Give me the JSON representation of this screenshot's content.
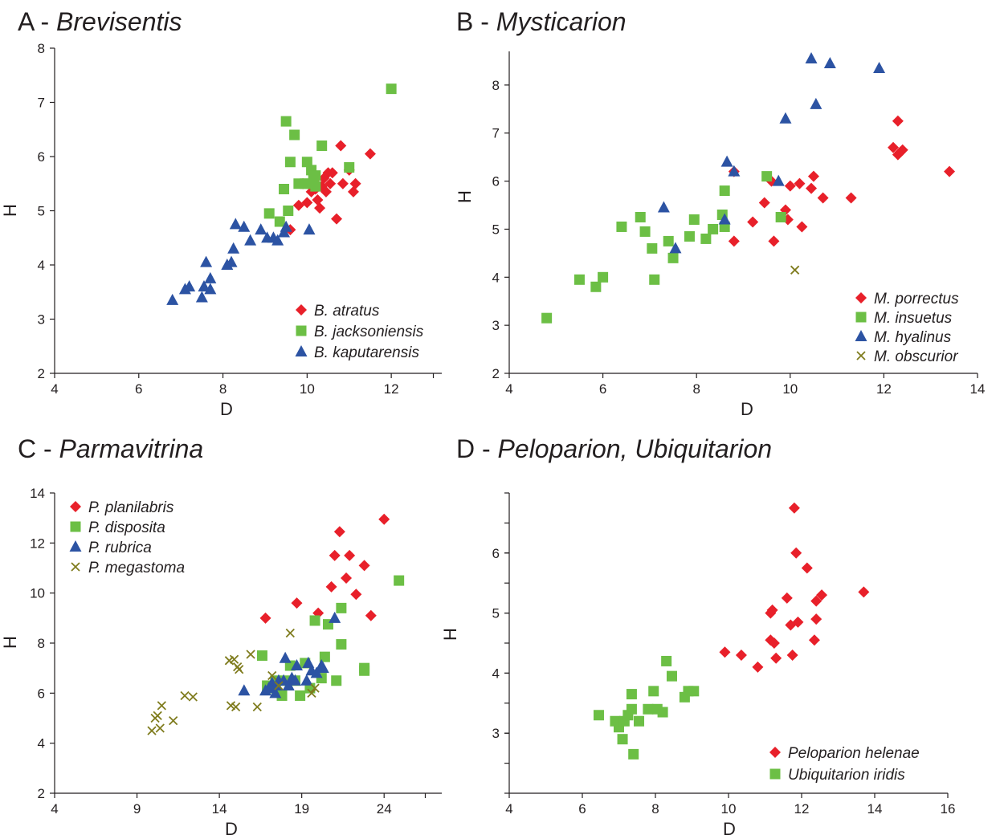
{
  "colors": {
    "red": "#e8202a",
    "green": "#6cbf45",
    "blue": "#2c53a3",
    "olive": "#7f7c1e"
  },
  "chart_data": [
    {
      "type": "scatter",
      "panel_letter": "A - ",
      "title": "Brevisentis",
      "xlabel": "D",
      "ylabel": "H",
      "xlim": [
        4,
        13.2
      ],
      "ylim": [
        2,
        8
      ],
      "xticks": [
        4,
        6,
        8,
        10,
        12
      ],
      "yticks": [
        2,
        3,
        4,
        5,
        6,
        7,
        8
      ],
      "legend_position": "bottom-right",
      "series": [
        {
          "name": "B. atratus",
          "marker": "diamond",
          "color": "#e8202a",
          "points": [
            [
              9.6,
              4.65
            ],
            [
              9.8,
              5.1
            ],
            [
              9.9,
              5.5
            ],
            [
              10.0,
              5.15
            ],
            [
              10.1,
              5.35
            ],
            [
              10.15,
              5.55
            ],
            [
              10.2,
              5.4
            ],
            [
              10.25,
              5.2
            ],
            [
              10.3,
              5.05
            ],
            [
              10.35,
              5.45
            ],
            [
              10.4,
              5.6
            ],
            [
              10.45,
              5.35
            ],
            [
              10.5,
              5.7
            ],
            [
              10.55,
              5.5
            ],
            [
              10.6,
              5.7
            ],
            [
              10.7,
              4.85
            ],
            [
              10.8,
              6.2
            ],
            [
              10.85,
              5.5
            ],
            [
              11.0,
              5.75
            ],
            [
              11.1,
              5.35
            ],
            [
              11.15,
              5.5
            ],
            [
              11.5,
              6.05
            ]
          ]
        },
        {
          "name": "B. jacksoniensis",
          "marker": "square",
          "color": "#6cbf45",
          "points": [
            [
              9.1,
              4.95
            ],
            [
              9.35,
              4.8
            ],
            [
              9.45,
              5.4
            ],
            [
              9.5,
              6.65
            ],
            [
              9.55,
              5.0
            ],
            [
              9.6,
              5.9
            ],
            [
              9.7,
              6.4
            ],
            [
              9.8,
              5.5
            ],
            [
              9.95,
              5.5
            ],
            [
              10.0,
              5.9
            ],
            [
              10.05,
              5.5
            ],
            [
              10.1,
              5.75
            ],
            [
              10.15,
              5.6
            ],
            [
              10.2,
              5.65
            ],
            [
              10.2,
              5.45
            ],
            [
              10.35,
              6.2
            ],
            [
              11.0,
              5.8
            ],
            [
              12.0,
              7.25
            ]
          ]
        },
        {
          "name": "B. kaputarensis",
          "marker": "triangle",
          "color": "#2c53a3",
          "points": [
            [
              6.8,
              3.35
            ],
            [
              7.1,
              3.55
            ],
            [
              7.2,
              3.6
            ],
            [
              7.5,
              3.4
            ],
            [
              7.55,
              3.6
            ],
            [
              7.6,
              4.05
            ],
            [
              7.7,
              3.75
            ],
            [
              7.7,
              3.55
            ],
            [
              8.1,
              4.0
            ],
            [
              8.2,
              4.05
            ],
            [
              8.25,
              4.3
            ],
            [
              8.3,
              4.75
            ],
            [
              8.5,
              4.7
            ],
            [
              8.65,
              4.45
            ],
            [
              8.9,
              4.65
            ],
            [
              9.05,
              4.5
            ],
            [
              9.2,
              4.5
            ],
            [
              9.3,
              4.45
            ],
            [
              9.45,
              4.6
            ],
            [
              9.5,
              4.7
            ],
            [
              10.05,
              4.65
            ]
          ]
        }
      ]
    },
    {
      "type": "scatter",
      "panel_letter": "B - ",
      "title": "Mysticarion",
      "xlabel": "D",
      "ylabel": "H",
      "xlim": [
        4,
        14
      ],
      "ylim": [
        2,
        8.7
      ],
      "xticks": [
        4,
        6,
        8,
        10,
        12,
        14
      ],
      "yticks": [
        2,
        3,
        4,
        5,
        6,
        7,
        8
      ],
      "legend_position": "bottom-right",
      "series": [
        {
          "name": "M. porrectus",
          "marker": "diamond",
          "color": "#e8202a",
          "points": [
            [
              8.8,
              4.75
            ],
            [
              8.8,
              6.2
            ],
            [
              9.2,
              5.15
            ],
            [
              9.45,
              5.55
            ],
            [
              9.6,
              6.0
            ],
            [
              9.65,
              4.75
            ],
            [
              9.9,
              5.4
            ],
            [
              9.95,
              5.2
            ],
            [
              10.0,
              5.9
            ],
            [
              10.2,
              5.95
            ],
            [
              10.25,
              5.05
            ],
            [
              10.45,
              5.85
            ],
            [
              10.5,
              6.1
            ],
            [
              10.7,
              5.65
            ],
            [
              11.3,
              5.65
            ],
            [
              12.2,
              6.7
            ],
            [
              12.3,
              6.55
            ],
            [
              12.35,
              6.6
            ],
            [
              12.4,
              6.65
            ],
            [
              12.3,
              7.25
            ],
            [
              13.4,
              6.2
            ]
          ]
        },
        {
          "name": "M. insuetus",
          "marker": "square",
          "color": "#6cbf45",
          "points": [
            [
              4.8,
              3.15
            ],
            [
              5.5,
              3.95
            ],
            [
              5.85,
              3.8
            ],
            [
              6.0,
              4.0
            ],
            [
              6.4,
              5.05
            ],
            [
              6.8,
              5.25
            ],
            [
              6.9,
              4.95
            ],
            [
              7.05,
              4.6
            ],
            [
              7.1,
              3.95
            ],
            [
              7.4,
              4.75
            ],
            [
              7.5,
              4.4
            ],
            [
              7.85,
              4.85
            ],
            [
              7.95,
              5.2
            ],
            [
              8.2,
              4.8
            ],
            [
              8.35,
              5.0
            ],
            [
              8.55,
              5.3
            ],
            [
              8.6,
              5.05
            ],
            [
              8.6,
              5.8
            ],
            [
              9.5,
              6.1
            ],
            [
              9.8,
              5.25
            ]
          ]
        },
        {
          "name": "M. hyalinus",
          "marker": "triangle",
          "color": "#2c53a3",
          "points": [
            [
              7.3,
              5.45
            ],
            [
              7.55,
              4.6
            ],
            [
              8.6,
              5.2
            ],
            [
              8.65,
              6.4
            ],
            [
              8.8,
              6.2
            ],
            [
              9.75,
              6.0
            ],
            [
              9.9,
              7.3
            ],
            [
              10.45,
              8.55
            ],
            [
              10.55,
              7.6
            ],
            [
              10.85,
              8.45
            ],
            [
              11.9,
              8.35
            ]
          ]
        },
        {
          "name": "M. obscurior",
          "marker": "cross",
          "color": "#7f7c1e",
          "points": [
            [
              10.1,
              4.15
            ]
          ]
        }
      ]
    },
    {
      "type": "scatter",
      "panel_letter": "C - ",
      "title": "Parmavitrina",
      "xlabel": "D",
      "ylabel": "H",
      "xlim": [
        4,
        27.5
      ],
      "ylim": [
        2,
        14
      ],
      "xticks": [
        4,
        9,
        14,
        19,
        24
      ],
      "yticks": [
        2,
        4,
        6,
        8,
        10,
        12,
        14
      ],
      "legend_position": "top-left",
      "series": [
        {
          "name": "P. planilabris",
          "marker": "diamond",
          "color": "#e8202a",
          "points": [
            [
              16.8,
              9.0
            ],
            [
              18.7,
              9.6
            ],
            [
              20.0,
              9.2
            ],
            [
              20.8,
              10.25
            ],
            [
              21.0,
              11.5
            ],
            [
              21.3,
              12.45
            ],
            [
              21.7,
              10.6
            ],
            [
              21.9,
              11.5
            ],
            [
              22.3,
              9.95
            ],
            [
              22.8,
              11.1
            ],
            [
              23.2,
              9.1
            ],
            [
              24.0,
              12.95
            ]
          ]
        },
        {
          "name": "P. disposita",
          "marker": "square",
          "color": "#6cbf45",
          "points": [
            [
              16.6,
              7.5
            ],
            [
              16.9,
              6.3
            ],
            [
              17.2,
              6.2
            ],
            [
              17.4,
              6.5
            ],
            [
              17.8,
              5.9
            ],
            [
              18.0,
              6.5
            ],
            [
              18.3,
              7.1
            ],
            [
              18.6,
              6.5
            ],
            [
              18.9,
              5.9
            ],
            [
              19.2,
              7.2
            ],
            [
              19.5,
              6.2
            ],
            [
              19.8,
              8.9
            ],
            [
              20.2,
              6.6
            ],
            [
              20.4,
              7.45
            ],
            [
              20.6,
              8.75
            ],
            [
              21.1,
              6.5
            ],
            [
              21.4,
              7.95
            ],
            [
              21.4,
              9.4
            ],
            [
              22.8,
              7.0
            ],
            [
              22.8,
              6.9
            ],
            [
              24.9,
              10.5
            ]
          ]
        },
        {
          "name": "P. rubrica",
          "marker": "triangle",
          "color": "#2c53a3",
          "points": [
            [
              15.5,
              6.1
            ],
            [
              16.8,
              6.1
            ],
            [
              17.0,
              6.2
            ],
            [
              17.2,
              6.4
            ],
            [
              17.4,
              6.0
            ],
            [
              17.5,
              6.3
            ],
            [
              17.6,
              6.5
            ],
            [
              17.9,
              6.5
            ],
            [
              18.0,
              7.4
            ],
            [
              18.2,
              6.3
            ],
            [
              18.4,
              6.6
            ],
            [
              18.6,
              6.5
            ],
            [
              18.7,
              7.1
            ],
            [
              19.3,
              6.5
            ],
            [
              19.4,
              7.2
            ],
            [
              19.6,
              6.9
            ],
            [
              19.9,
              6.8
            ],
            [
              20.2,
              7.1
            ],
            [
              20.3,
              7.0
            ],
            [
              21.0,
              9.0
            ]
          ]
        },
        {
          "name": "P. megastoma",
          "marker": "cross",
          "color": "#7f7c1e",
          "points": [
            [
              9.9,
              4.5
            ],
            [
              10.1,
              5.0
            ],
            [
              10.25,
              5.1
            ],
            [
              10.4,
              4.6
            ],
            [
              10.5,
              5.5
            ],
            [
              11.2,
              4.9
            ],
            [
              11.9,
              5.9
            ],
            [
              12.4,
              5.85
            ],
            [
              14.6,
              7.3
            ],
            [
              14.7,
              5.5
            ],
            [
              14.9,
              7.35
            ],
            [
              15.0,
              5.45
            ],
            [
              15.1,
              7.05
            ],
            [
              15.2,
              6.95
            ],
            [
              15.9,
              7.55
            ],
            [
              16.3,
              5.45
            ],
            [
              17.2,
              6.7
            ],
            [
              17.6,
              6.3
            ],
            [
              18.3,
              8.4
            ],
            [
              19.6,
              6.0
            ],
            [
              19.8,
              6.2
            ]
          ]
        }
      ]
    },
    {
      "type": "scatter",
      "panel_letter": "D - ",
      "title": "Peloparion, Ubiquitarion",
      "xlabel": "D",
      "ylabel": "H",
      "xlim": [
        4,
        16
      ],
      "ylim": [
        2,
        7.0
      ],
      "xticks": [
        4,
        6,
        8,
        10,
        12,
        14,
        16
      ],
      "yticks": [
        3,
        4,
        5,
        6
      ],
      "legend_position": "bottom-right",
      "series": [
        {
          "name": "Peloparion helenae",
          "marker": "diamond",
          "color": "#e8202a",
          "points": [
            [
              9.9,
              4.35
            ],
            [
              10.35,
              4.3
            ],
            [
              10.8,
              4.1
            ],
            [
              11.15,
              4.55
            ],
            [
              11.15,
              5.0
            ],
            [
              11.2,
              5.05
            ],
            [
              11.25,
              4.5
            ],
            [
              11.3,
              4.25
            ],
            [
              11.6,
              5.25
            ],
            [
              11.7,
              4.8
            ],
            [
              11.75,
              4.3
            ],
            [
              11.8,
              6.75
            ],
            [
              11.85,
              6.0
            ],
            [
              11.9,
              4.85
            ],
            [
              12.15,
              5.75
            ],
            [
              12.35,
              4.55
            ],
            [
              12.4,
              4.9
            ],
            [
              12.4,
              5.2
            ],
            [
              12.55,
              5.3
            ],
            [
              13.7,
              5.35
            ]
          ]
        },
        {
          "name": "Ubiquitarion iridis",
          "marker": "square",
          "color": "#6cbf45",
          "points": [
            [
              6.45,
              3.3
            ],
            [
              6.9,
              3.2
            ],
            [
              7.0,
              3.1
            ],
            [
              7.1,
              2.9
            ],
            [
              7.15,
              3.2
            ],
            [
              7.25,
              3.3
            ],
            [
              7.35,
              3.4
            ],
            [
              7.35,
              3.65
            ],
            [
              7.4,
              2.65
            ],
            [
              7.55,
              3.2
            ],
            [
              7.8,
              3.4
            ],
            [
              7.95,
              3.7
            ],
            [
              8.05,
              3.4
            ],
            [
              8.2,
              3.35
            ],
            [
              8.3,
              4.2
            ],
            [
              8.45,
              3.95
            ],
            [
              8.8,
              3.6
            ],
            [
              8.9,
              3.7
            ],
            [
              9.05,
              3.7
            ]
          ]
        }
      ]
    }
  ]
}
